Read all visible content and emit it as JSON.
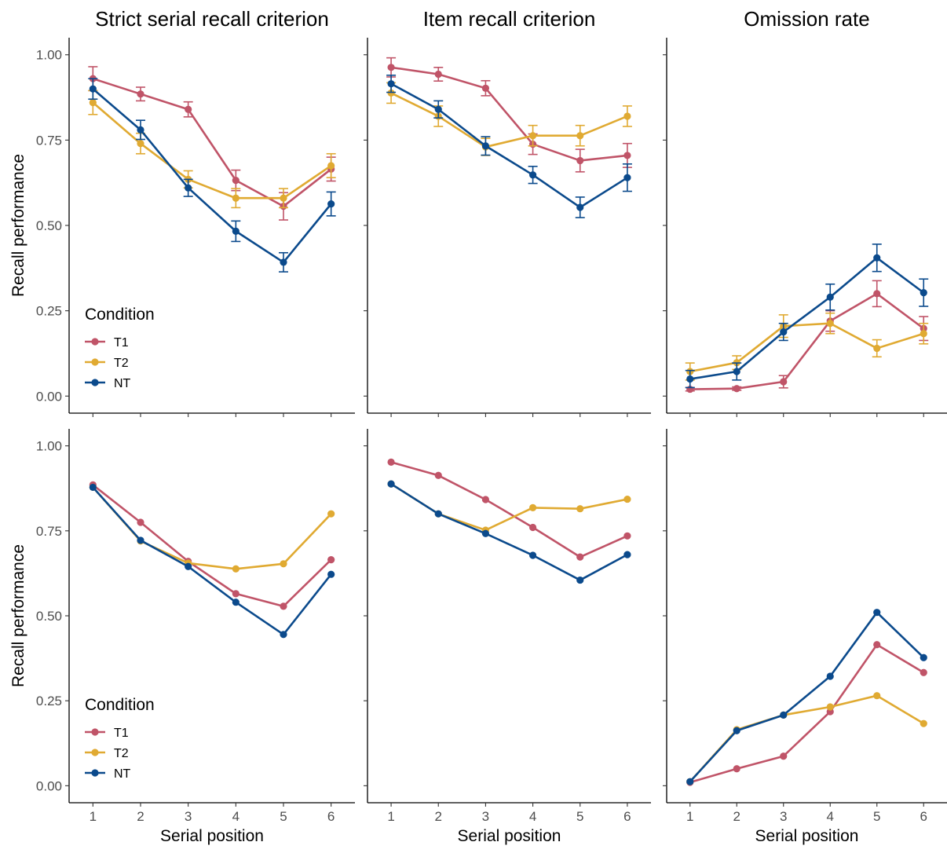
{
  "colors": {
    "T1": "#c05468",
    "T2": "#e0aa32",
    "NT": "#0b4a8c"
  },
  "column_titles": [
    "Strict serial recall criterion",
    "Item recall criterion",
    "Omission rate"
  ],
  "y_axis_label": "Recall performance",
  "x_axis_label": "Serial position",
  "legend": {
    "title": "Condition",
    "entries": [
      "T1",
      "T2",
      "NT"
    ]
  },
  "chart_data": [
    {
      "type": "line",
      "panel": "top-left",
      "title": "Strict serial recall criterion",
      "ylabel": "Recall performance",
      "xlabel": "",
      "x": [
        1,
        2,
        3,
        4,
        5,
        6
      ],
      "xlim": [
        0.5,
        6.5
      ],
      "ylim": [
        -0.05,
        1.05
      ],
      "yticks": [
        "0.00",
        "0.25",
        "0.50",
        "0.75",
        "1.00"
      ],
      "legend": "bottom-left",
      "grid": false,
      "series": [
        {
          "name": "T1",
          "values": [
            0.93,
            0.885,
            0.84,
            0.632,
            0.556,
            0.665
          ],
          "err": [
            0.035,
            0.02,
            0.022,
            0.03,
            0.04,
            0.035
          ]
        },
        {
          "name": "T2",
          "values": [
            0.86,
            0.74,
            0.635,
            0.58,
            0.58,
            0.675
          ],
          "err": [
            0.035,
            0.03,
            0.025,
            0.028,
            0.028,
            0.035
          ]
        },
        {
          "name": "NT",
          "values": [
            0.9,
            0.78,
            0.61,
            0.483,
            0.392,
            0.563
          ],
          "err": [
            0.03,
            0.028,
            0.025,
            0.03,
            0.028,
            0.035
          ]
        }
      ]
    },
    {
      "type": "line",
      "panel": "top-middle",
      "title": "Item recall criterion",
      "x": [
        1,
        2,
        3,
        4,
        5,
        6
      ],
      "xlim": [
        0.5,
        6.5
      ],
      "ylim": [
        -0.05,
        1.05
      ],
      "grid": false,
      "series": [
        {
          "name": "T1",
          "values": [
            0.963,
            0.943,
            0.902,
            0.738,
            0.69,
            0.705
          ],
          "err": [
            0.028,
            0.02,
            0.022,
            0.03,
            0.033,
            0.035
          ]
        },
        {
          "name": "T2",
          "values": [
            0.888,
            0.82,
            0.73,
            0.763,
            0.763,
            0.82
          ],
          "err": [
            0.03,
            0.03,
            0.025,
            0.03,
            0.03,
            0.03
          ]
        },
        {
          "name": "NT",
          "values": [
            0.915,
            0.84,
            0.733,
            0.648,
            0.553,
            0.64
          ],
          "err": [
            0.025,
            0.025,
            0.027,
            0.025,
            0.03,
            0.04
          ]
        }
      ]
    },
    {
      "type": "line",
      "panel": "top-right",
      "title": "Omission rate",
      "x": [
        1,
        2,
        3,
        4,
        5,
        6
      ],
      "xlim": [
        0.5,
        6.5
      ],
      "ylim": [
        -0.05,
        1.05
      ],
      "grid": false,
      "series": [
        {
          "name": "T1",
          "values": [
            0.02,
            0.022,
            0.042,
            0.22,
            0.3,
            0.198
          ],
          "err": [
            0.005,
            0.005,
            0.018,
            0.03,
            0.038,
            0.035
          ]
        },
        {
          "name": "T2",
          "values": [
            0.072,
            0.098,
            0.205,
            0.213,
            0.14,
            0.183
          ],
          "err": [
            0.025,
            0.02,
            0.033,
            0.03,
            0.025,
            0.03
          ]
        },
        {
          "name": "NT",
          "values": [
            0.05,
            0.072,
            0.188,
            0.29,
            0.405,
            0.303
          ],
          "err": [
            0.025,
            0.025,
            0.025,
            0.038,
            0.04,
            0.04
          ]
        }
      ]
    },
    {
      "type": "line",
      "panel": "bottom-left",
      "ylabel": "Recall performance",
      "xlabel": "Serial position",
      "x": [
        1,
        2,
        3,
        4,
        5,
        6
      ],
      "xlim": [
        0.5,
        6.5
      ],
      "ylim": [
        -0.05,
        1.05
      ],
      "yticks": [
        "0.00",
        "0.25",
        "0.50",
        "0.75",
        "1.00"
      ],
      "xticks": [
        "1",
        "2",
        "3",
        "4",
        "5",
        "6"
      ],
      "legend": "bottom-left",
      "grid": false,
      "series": [
        {
          "name": "T1",
          "values": [
            0.885,
            0.775,
            0.66,
            0.565,
            0.528,
            0.665
          ]
        },
        {
          "name": "T2",
          "values": [
            0.878,
            0.72,
            0.655,
            0.638,
            0.653,
            0.8
          ]
        },
        {
          "name": "NT",
          "values": [
            0.878,
            0.722,
            0.645,
            0.54,
            0.445,
            0.622
          ]
        }
      ]
    },
    {
      "type": "line",
      "panel": "bottom-middle",
      "xlabel": "Serial position",
      "x": [
        1,
        2,
        3,
        4,
        5,
        6
      ],
      "xlim": [
        0.5,
        6.5
      ],
      "ylim": [
        -0.05,
        1.05
      ],
      "xticks": [
        "1",
        "2",
        "3",
        "4",
        "5",
        "6"
      ],
      "grid": false,
      "series": [
        {
          "name": "T1",
          "values": [
            0.952,
            0.913,
            0.842,
            0.76,
            0.673,
            0.735
          ]
        },
        {
          "name": "T2",
          "values": [
            0.888,
            0.8,
            0.752,
            0.818,
            0.815,
            0.843
          ]
        },
        {
          "name": "NT",
          "values": [
            0.888,
            0.8,
            0.742,
            0.678,
            0.605,
            0.68
          ]
        }
      ]
    },
    {
      "type": "line",
      "panel": "bottom-right",
      "xlabel": "Serial position",
      "x": [
        1,
        2,
        3,
        4,
        5,
        6
      ],
      "xlim": [
        0.5,
        6.5
      ],
      "ylim": [
        -0.05,
        1.05
      ],
      "xticks": [
        "1",
        "2",
        "3",
        "4",
        "5",
        "6"
      ],
      "grid": false,
      "series": [
        {
          "name": "T1",
          "values": [
            0.01,
            0.05,
            0.087,
            0.218,
            0.415,
            0.333
          ]
        },
        {
          "name": "T2",
          "values": [
            0.012,
            0.165,
            0.208,
            0.232,
            0.265,
            0.183
          ]
        },
        {
          "name": "NT",
          "values": [
            0.012,
            0.162,
            0.208,
            0.322,
            0.51,
            0.377
          ]
        }
      ]
    }
  ]
}
